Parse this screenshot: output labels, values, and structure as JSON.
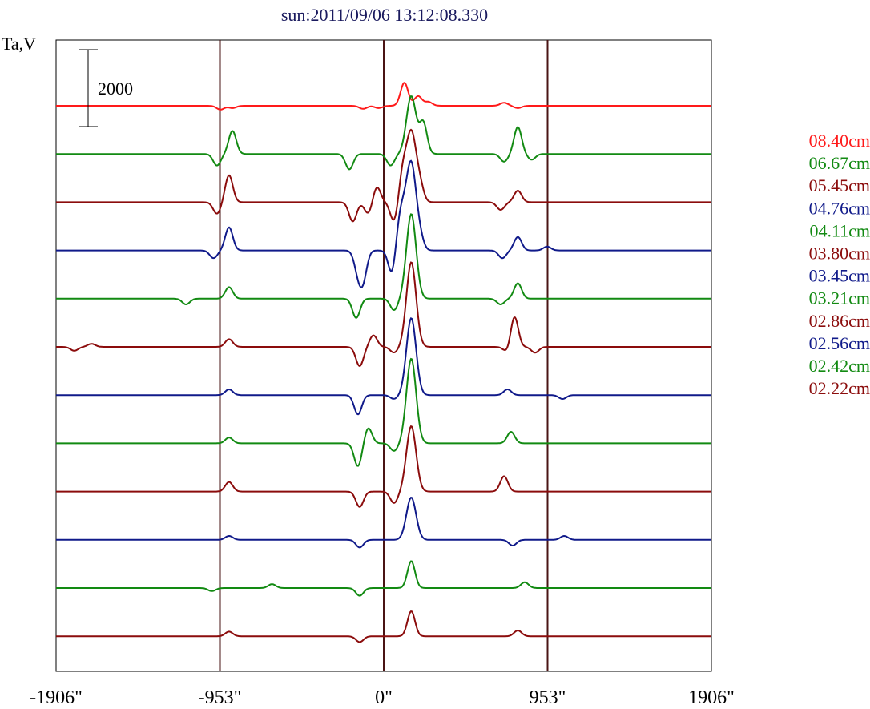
{
  "chart_data": {
    "type": "line",
    "title": "sun:2011/09/06 13:12:08.330",
    "ylabel": "Ta,V",
    "scale_bar_label": "2000",
    "scale_bar_value": 2000,
    "xlim": [
      -1906,
      1906
    ],
    "x_ticks": [
      {
        "value": -1906,
        "label": "-1906\""
      },
      {
        "value": -953,
        "label": "-953\""
      },
      {
        "value": 0,
        "label": "0\""
      },
      {
        "value": 953,
        "label": "953\""
      },
      {
        "value": 1906,
        "label": "1906\""
      }
    ],
    "vertical_lines": [
      -953,
      0,
      953
    ],
    "grid": false,
    "legend_position": "right",
    "colors": {
      "red": "#ff1a1a",
      "green": "#128a12",
      "darkred": "#8b0c0c",
      "navy": "#101a8a",
      "axis": "#000000",
      "vline": "#4a1414",
      "title": "#1a1a5e"
    },
    "series": [
      {
        "name": "08.40cm",
        "color": "#ff1a1a",
        "profile": [
          [
            -950,
            -100
          ],
          [
            -880,
            -60
          ],
          [
            -120,
            -80
          ],
          [
            -30,
            -60
          ],
          [
            120,
            600
          ],
          [
            200,
            250
          ],
          [
            260,
            100
          ],
          [
            700,
            80
          ],
          [
            780,
            -60
          ]
        ]
      },
      {
        "name": "06.67cm",
        "color": "#128a12",
        "profile": [
          [
            -970,
            -300
          ],
          [
            -880,
            600
          ],
          [
            -200,
            -400
          ],
          [
            40,
            -300
          ],
          [
            160,
            1500
          ],
          [
            230,
            800
          ],
          [
            700,
            -200
          ],
          [
            780,
            700
          ],
          [
            860,
            -150
          ]
        ]
      },
      {
        "name": "05.45cm",
        "color": "#8b0c0c",
        "profile": [
          [
            -970,
            -300
          ],
          [
            -900,
            700
          ],
          [
            -180,
            -500
          ],
          [
            -90,
            -300
          ],
          [
            -40,
            400
          ],
          [
            60,
            -500
          ],
          [
            110,
            700
          ],
          [
            160,
            1800
          ],
          [
            210,
            400
          ],
          [
            680,
            -200
          ],
          [
            780,
            300
          ]
        ]
      },
      {
        "name": "04.76cm",
        "color": "#101a8a",
        "profile": [
          [
            -990,
            -200
          ],
          [
            -900,
            600
          ],
          [
            -150,
            -500
          ],
          [
            -120,
            -700
          ],
          [
            50,
            -700
          ],
          [
            100,
            1000
          ],
          [
            160,
            2200
          ],
          [
            210,
            300
          ],
          [
            690,
            -200
          ],
          [
            780,
            350
          ],
          [
            950,
            100
          ]
        ]
      },
      {
        "name": "04.11cm",
        "color": "#128a12",
        "profile": [
          [
            -1150,
            -150
          ],
          [
            -900,
            300
          ],
          [
            -160,
            -500
          ],
          [
            60,
            -300
          ],
          [
            160,
            2200
          ],
          [
            680,
            -150
          ],
          [
            780,
            400
          ]
        ]
      },
      {
        "name": "03.80cm",
        "color": "#8b0c0c",
        "profile": [
          [
            -1800,
            -100
          ],
          [
            -1700,
            80
          ],
          [
            -900,
            200
          ],
          [
            -140,
            -500
          ],
          [
            -60,
            300
          ],
          [
            60,
            -150
          ],
          [
            160,
            2200
          ],
          [
            720,
            -150
          ],
          [
            760,
            800
          ],
          [
            880,
            -150
          ]
        ]
      },
      {
        "name": "03.45cm",
        "color": "#101a8a",
        "profile": [
          [
            -900,
            150
          ],
          [
            -150,
            -500
          ],
          [
            60,
            -100
          ],
          [
            160,
            2000
          ],
          [
            720,
            150
          ],
          [
            1040,
            -100
          ]
        ]
      },
      {
        "name": "03.21cm",
        "color": "#128a12",
        "profile": [
          [
            -900,
            150
          ],
          [
            -150,
            -600
          ],
          [
            -90,
            400
          ],
          [
            60,
            -200
          ],
          [
            160,
            2200
          ],
          [
            740,
            300
          ]
        ]
      },
      {
        "name": "02.86cm",
        "color": "#8b0c0c",
        "profile": [
          [
            -900,
            250
          ],
          [
            -140,
            -400
          ],
          [
            60,
            -300
          ],
          [
            160,
            1700
          ],
          [
            700,
            400
          ]
        ]
      },
      {
        "name": "02.56cm",
        "color": "#101a8a",
        "profile": [
          [
            -900,
            100
          ],
          [
            -140,
            -200
          ],
          [
            160,
            1100
          ],
          [
            750,
            -150
          ],
          [
            1050,
            100
          ]
        ]
      },
      {
        "name": "02.42cm",
        "color": "#128a12",
        "profile": [
          [
            -1000,
            -80
          ],
          [
            -650,
            100
          ],
          [
            -140,
            -200
          ],
          [
            160,
            700
          ],
          [
            820,
            150
          ]
        ]
      },
      {
        "name": "02.22cm",
        "color": "#8b0c0c",
        "profile": [
          [
            -900,
            120
          ],
          [
            -140,
            -150
          ],
          [
            160,
            650
          ],
          [
            780,
            150
          ]
        ]
      }
    ]
  }
}
